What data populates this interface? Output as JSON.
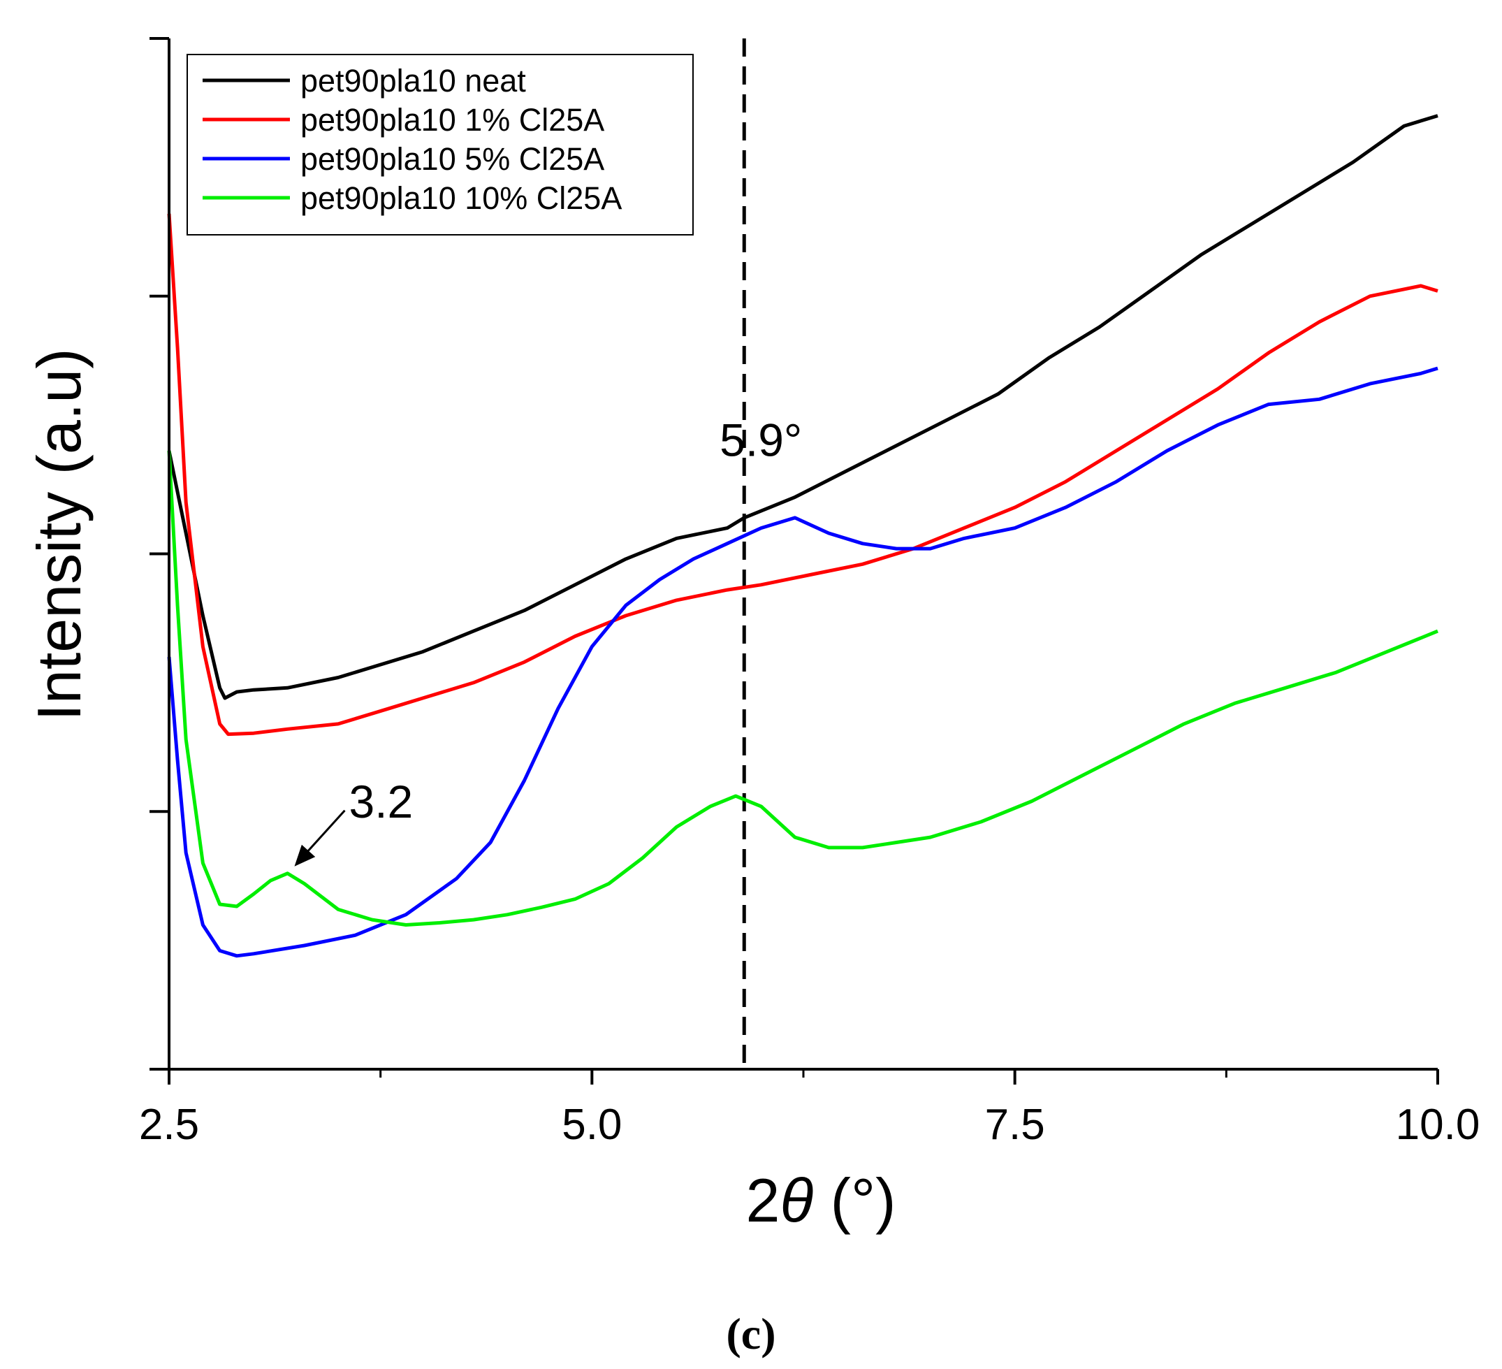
{
  "chart_data": {
    "type": "line",
    "title": "",
    "xlabel_prefix": "2",
    "xlabel_var": "θ",
    "xlabel_unit": " (°)",
    "ylabel": "Intensity (a.u)",
    "xlim": [
      2.5,
      10.0
    ],
    "ylim": [
      0,
      100
    ],
    "xticks": [
      "2.5",
      "5.0",
      "7.5",
      "10.0"
    ],
    "xtick_values": [
      2.5,
      5.0,
      7.5,
      10.0
    ],
    "y_ticks_unlabeled": [
      0,
      25,
      50,
      75,
      100
    ],
    "legend_placement": "top-left",
    "reference_line": {
      "x": 5.9,
      "style": "dashed",
      "color": "#000000"
    },
    "annotations": [
      {
        "text": "5.9°",
        "x": 5.9,
        "y": 61,
        "type": "label"
      },
      {
        "text": "3.2",
        "x": 3.2,
        "y": 19,
        "type": "arrow-label"
      }
    ],
    "series": [
      {
        "name": "pet90pla10 neat",
        "color": "#000000",
        "x": [
          2.5,
          2.6,
          2.7,
          2.8,
          2.83,
          2.9,
          3.0,
          3.2,
          3.5,
          3.8,
          4.0,
          4.3,
          4.6,
          4.9,
          5.2,
          5.5,
          5.8,
          5.9,
          6.2,
          6.5,
          6.8,
          7.1,
          7.4,
          7.7,
          8.0,
          8.3,
          8.6,
          8.9,
          9.2,
          9.5,
          9.8,
          10.0
        ],
        "y": [
          60,
          52,
          44,
          37,
          36,
          36.6,
          36.8,
          37,
          38,
          39.5,
          40.5,
          42.5,
          44.5,
          47,
          49.5,
          51.5,
          52.5,
          53.5,
          55.5,
          58,
          60.5,
          63,
          65.5,
          69,
          72,
          75.5,
          79,
          82,
          85,
          88,
          91.5,
          92.5
        ]
      },
      {
        "name": "pet90pla10 1% Cl25A",
        "color": "#ff0000",
        "x": [
          2.5,
          2.55,
          2.6,
          2.7,
          2.8,
          2.85,
          3.0,
          3.2,
          3.5,
          3.8,
          4.0,
          4.3,
          4.6,
          4.9,
          5.2,
          5.5,
          5.8,
          6.0,
          6.3,
          6.6,
          6.9,
          7.2,
          7.5,
          7.8,
          8.1,
          8.4,
          8.7,
          9.0,
          9.3,
          9.6,
          9.9,
          10.0
        ],
        "y": [
          83,
          70,
          55,
          41,
          33.5,
          32.5,
          32.6,
          33,
          33.5,
          35,
          36,
          37.5,
          39.5,
          42,
          44,
          45.5,
          46.5,
          47,
          48,
          49,
          50.5,
          52.5,
          54.5,
          57,
          60,
          63,
          66,
          69.5,
          72.5,
          75,
          76,
          75.5
        ]
      },
      {
        "name": "pet90pla10 5% Cl25A",
        "color": "#0000ff",
        "x": [
          2.5,
          2.55,
          2.6,
          2.7,
          2.8,
          2.9,
          3.0,
          3.3,
          3.6,
          3.9,
          4.2,
          4.4,
          4.6,
          4.8,
          5.0,
          5.2,
          5.4,
          5.6,
          5.8,
          6.0,
          6.2,
          6.4,
          6.6,
          6.8,
          7.0,
          7.2,
          7.5,
          7.8,
          8.1,
          8.4,
          8.7,
          9.0,
          9.3,
          9.6,
          9.9,
          10.0
        ],
        "y": [
          40,
          30,
          21,
          14,
          11.5,
          11,
          11.2,
          12,
          13,
          15,
          18.5,
          22,
          28,
          35,
          41,
          45,
          47.5,
          49.5,
          51,
          52.5,
          53.5,
          52,
          51,
          50.5,
          50.5,
          51.5,
          52.5,
          54.5,
          57,
          60,
          62.5,
          64.5,
          65,
          66.5,
          67.5,
          68
        ]
      },
      {
        "name": "pet90pla10 10% Cl25A",
        "color": "#00ee00",
        "x": [
          2.5,
          2.55,
          2.6,
          2.7,
          2.8,
          2.9,
          3.0,
          3.1,
          3.2,
          3.3,
          3.5,
          3.7,
          3.9,
          4.1,
          4.3,
          4.5,
          4.7,
          4.9,
          5.1,
          5.3,
          5.5,
          5.7,
          5.85,
          6.0,
          6.2,
          6.4,
          6.6,
          6.8,
          7.0,
          7.3,
          7.6,
          7.9,
          8.2,
          8.5,
          8.8,
          9.1,
          9.4,
          9.7,
          10.0
        ],
        "y": [
          60,
          45,
          32,
          20,
          16,
          15.8,
          17,
          18.3,
          19,
          18,
          15.5,
          14.5,
          14,
          14.2,
          14.5,
          15,
          15.7,
          16.5,
          18,
          20.5,
          23.5,
          25.5,
          26.5,
          25.5,
          22.5,
          21.5,
          21.5,
          22,
          22.5,
          24,
          26,
          28.5,
          31,
          33.5,
          35.5,
          37,
          38.5,
          40.5,
          42.5
        ]
      }
    ],
    "caption": "(c)"
  }
}
